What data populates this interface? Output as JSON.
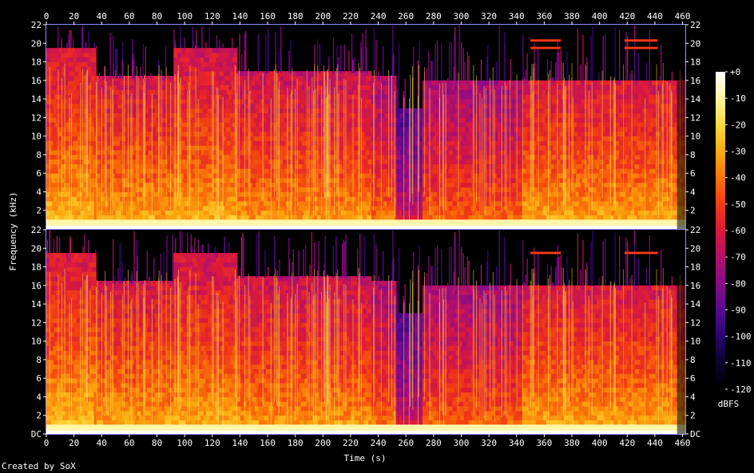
{
  "chart_data": {
    "type": "heatmap",
    "title": "",
    "xlabel": "Time (s)",
    "ylabel": "Frequency (kHz)",
    "x_ticks": [
      0,
      20,
      40,
      60,
      80,
      100,
      120,
      140,
      160,
      180,
      200,
      220,
      240,
      260,
      280,
      300,
      320,
      340,
      360,
      380,
      400,
      420,
      440,
      460
    ],
    "y_tick_labels": [
      "DC",
      "2",
      "4",
      "6",
      "8",
      "10",
      "12",
      "14",
      "16",
      "18",
      "20",
      "22"
    ],
    "y_ticks": [
      0,
      2,
      4,
      6,
      8,
      10,
      12,
      14,
      16,
      18,
      20,
      22
    ],
    "xlim": [
      0,
      462
    ],
    "ylim": [
      0,
      22
    ],
    "channels": 2,
    "colorbar": {
      "label": "dBFS",
      "tick_labels": [
        "+0",
        "-10",
        "-20",
        "-30",
        "-40",
        "-50",
        "-60",
        "-70",
        "-80",
        "-90",
        "-100",
        "-110",
        "-120"
      ],
      "range": [
        -120,
        0
      ],
      "colors": [
        "#000000",
        "#0a0530",
        "#2a0670",
        "#5a0a90",
        "#8a0a88",
        "#b4106a",
        "#dc1a3a",
        "#f23a14",
        "#fa7208",
        "#fcaa10",
        "#fdd83a",
        "#fff49a",
        "#ffffff"
      ]
    },
    "segments": [
      {
        "start": 0,
        "end": 36,
        "cutoff_khz": 19.5,
        "level": 0.86
      },
      {
        "start": 36,
        "end": 92,
        "cutoff_khz": 16.2,
        "level": 0.82
      },
      {
        "start": 92,
        "end": 138,
        "cutoff_khz": 19.5,
        "level": 0.84
      },
      {
        "start": 138,
        "end": 235,
        "cutoff_khz": 16.8,
        "level": 0.8
      },
      {
        "start": 235,
        "end": 253,
        "cutoff_khz": 16.5,
        "level": 0.74
      },
      {
        "start": 253,
        "end": 272,
        "cutoff_khz": 13.0,
        "level": 0.55
      },
      {
        "start": 272,
        "end": 344,
        "cutoff_khz": 16.0,
        "level": 0.72
      },
      {
        "start": 344,
        "end": 462,
        "cutoff_khz": 16.0,
        "level": 0.82
      }
    ]
  },
  "footer": {
    "credit": "Created by SoX"
  }
}
